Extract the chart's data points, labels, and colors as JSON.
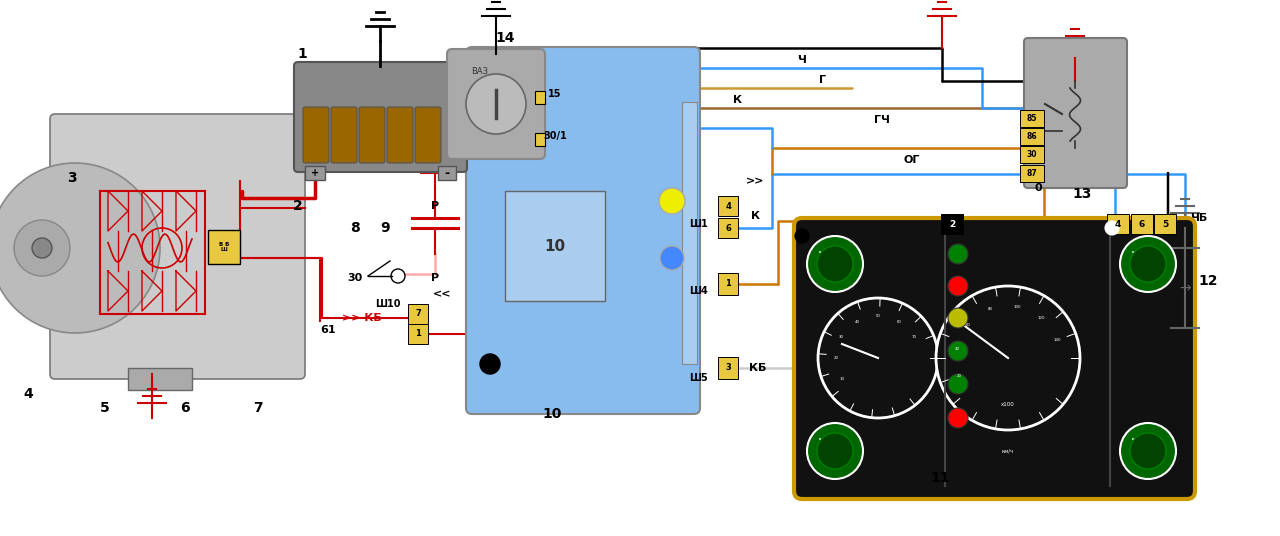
{
  "bg_color": "#ffffff",
  "fig_width": 12.8,
  "fig_height": 5.36,
  "wire_colors": {
    "red": "#cc0000",
    "blue": "#3399ff",
    "orange": "#cc7700",
    "pink": "#ffaaaa",
    "brown": "#996633",
    "black": "#000000",
    "yellow": "#cccc00",
    "gray": "#999999",
    "green": "#009900",
    "dark_brown": "#663300"
  },
  "connector_yellow": "#e8c840",
  "panel_blue": "#88bbee",
  "dashboard_bg": "#111111",
  "dashboard_border": "#cc9900",
  "labels_KB": "КБ",
  "label_P": "Р",
  "label_Sh10": "Ш10",
  "label_Sh5": "Ш5",
  "label_Sh4": "Ш4",
  "label_Sh1": "Ш1",
  "label_0": "0",
  "label_OG": "ОГ",
  "label_GCH": "ГЧ",
  "label_K": "К",
  "label_G": "Г",
  "label_CH": "Ч",
  "label_ChB": "ЧБ",
  "label_30_1": "30/1",
  "label_15": "15",
  "label_VAZ": "ВАЗ",
  "label_87": "87",
  "label_30c": "30",
  "label_86": "86",
  "label_85": "85",
  "label_VBSh": "В Б\nШ"
}
